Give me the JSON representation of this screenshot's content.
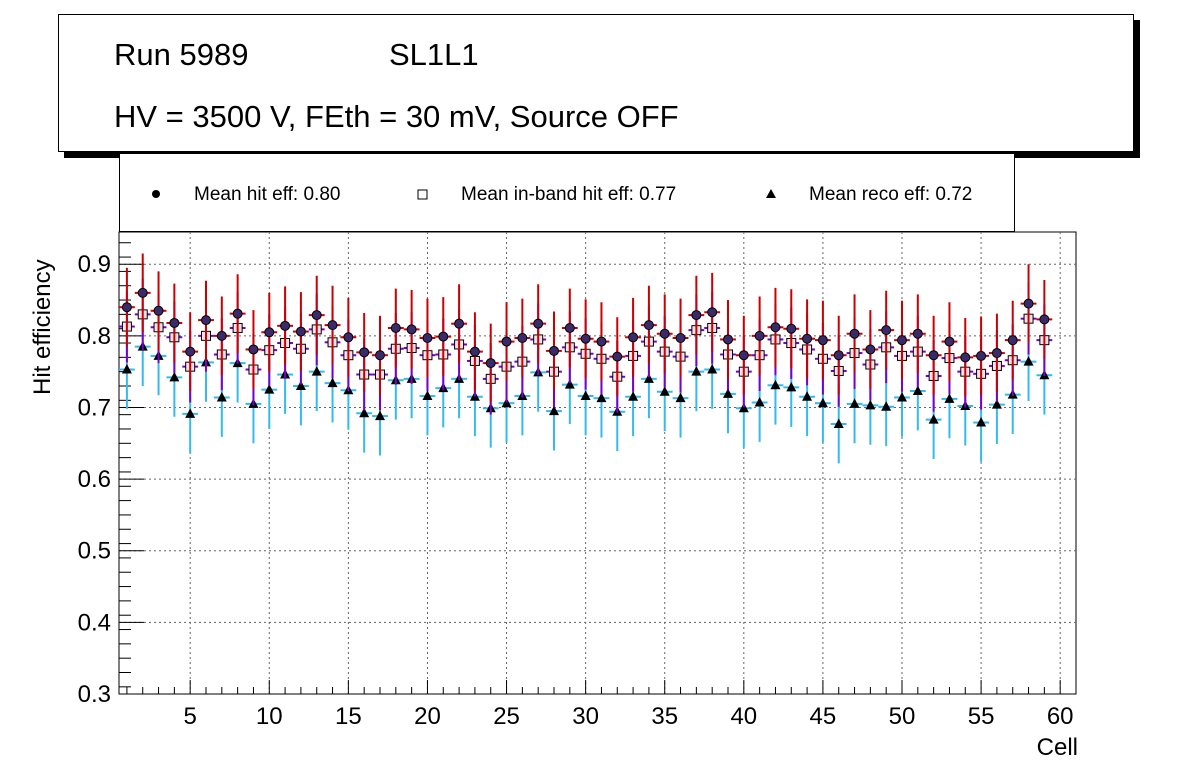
{
  "title": {
    "run": "Run 5989",
    "layer": "SL1L1",
    "conditions": "HV = 3500 V, FEth = 30 mV, Source OFF"
  },
  "legend": {
    "hit": "Mean hit  eff: 0.80",
    "inband": "Mean in-band hit eff: 0.77",
    "reco": "Mean reco eff: 0.72"
  },
  "colors": {
    "hit_err": "#cc0000",
    "hit_marker": "#3a2a6a",
    "inband_err": "#7a00cc",
    "inband_fill": "#fde0e8",
    "reco_err": "#33bbee",
    "reco_marker": "#000000"
  },
  "chart_data": {
    "type": "scatter",
    "xlabel": "Cell",
    "ylabel": "Hit efficiency",
    "xlim": [
      0.5,
      61
    ],
    "ylim": [
      0.3,
      0.945
    ],
    "xticks": [
      5,
      10,
      15,
      20,
      25,
      30,
      35,
      40,
      45,
      50,
      55,
      60
    ],
    "xtick_labels": [
      "5",
      "10",
      "15",
      "20",
      "25",
      "30",
      "35",
      "40",
      "45",
      "50",
      "55",
      "60"
    ],
    "yticks": [
      0.3,
      0.4,
      0.5,
      0.6,
      0.7,
      0.8,
      0.9
    ],
    "ytick_labels": [
      "0.3",
      "0.4",
      "0.5",
      "0.6",
      "0.7",
      "0.8",
      "0.9"
    ],
    "grid": true,
    "legend_position": "top",
    "x": [
      1,
      2,
      3,
      4,
      5,
      6,
      7,
      8,
      9,
      10,
      11,
      12,
      13,
      14,
      15,
      16,
      17,
      18,
      19,
      20,
      21,
      22,
      23,
      24,
      25,
      26,
      27,
      28,
      29,
      30,
      31,
      32,
      33,
      34,
      35,
      36,
      37,
      38,
      39,
      40,
      41,
      42,
      43,
      44,
      45,
      46,
      47,
      48,
      49,
      50,
      51,
      52,
      53,
      54,
      55,
      56,
      57,
      58,
      59
    ],
    "series": [
      {
        "name": "Mean hit  eff: 0.80",
        "values": [
          0.84,
          0.86,
          0.835,
          0.818,
          0.778,
          0.822,
          0.8,
          0.831,
          0.781,
          0.805,
          0.814,
          0.806,
          0.829,
          0.815,
          0.798,
          0.777,
          0.773,
          0.811,
          0.809,
          0.797,
          0.799,
          0.817,
          0.778,
          0.762,
          0.792,
          0.797,
          0.817,
          0.779,
          0.811,
          0.796,
          0.792,
          0.771,
          0.798,
          0.815,
          0.803,
          0.797,
          0.829,
          0.833,
          0.795,
          0.773,
          0.8,
          0.812,
          0.81,
          0.796,
          0.794,
          0.773,
          0.803,
          0.781,
          0.808,
          0.794,
          0.803,
          0.773,
          0.792,
          0.77,
          0.772,
          0.776,
          0.794,
          0.845,
          0.823
        ],
        "errors": [
          0.055,
          0.055,
          0.055,
          0.055,
          0.055,
          0.055,
          0.055,
          0.055,
          0.055,
          0.055,
          0.055,
          0.055,
          0.055,
          0.055,
          0.055,
          0.055,
          0.055,
          0.055,
          0.055,
          0.055,
          0.055,
          0.055,
          0.055,
          0.055,
          0.055,
          0.055,
          0.055,
          0.055,
          0.055,
          0.055,
          0.055,
          0.055,
          0.055,
          0.055,
          0.055,
          0.055,
          0.055,
          0.055,
          0.055,
          0.055,
          0.055,
          0.055,
          0.055,
          0.055,
          0.055,
          0.055,
          0.055,
          0.055,
          0.055,
          0.055,
          0.055,
          0.055,
          0.055,
          0.055,
          0.055,
          0.055,
          0.055,
          0.055,
          0.055
        ]
      },
      {
        "name": "Mean in-band hit eff: 0.77",
        "values": [
          0.813,
          0.83,
          0.812,
          0.798,
          0.757,
          0.8,
          0.774,
          0.811,
          0.753,
          0.78,
          0.79,
          0.782,
          0.809,
          0.791,
          0.773,
          0.746,
          0.746,
          0.782,
          0.783,
          0.773,
          0.774,
          0.788,
          0.765,
          0.74,
          0.757,
          0.764,
          0.795,
          0.75,
          0.784,
          0.775,
          0.768,
          0.743,
          0.772,
          0.792,
          0.778,
          0.771,
          0.808,
          0.811,
          0.774,
          0.75,
          0.773,
          0.795,
          0.79,
          0.781,
          0.768,
          0.751,
          0.776,
          0.76,
          0.784,
          0.772,
          0.778,
          0.744,
          0.769,
          0.75,
          0.747,
          0.758,
          0.766,
          0.824,
          0.794
        ],
        "errors": [
          0.05,
          0.05,
          0.05,
          0.05,
          0.05,
          0.05,
          0.05,
          0.05,
          0.05,
          0.05,
          0.05,
          0.05,
          0.05,
          0.05,
          0.05,
          0.05,
          0.05,
          0.05,
          0.05,
          0.05,
          0.05,
          0.05,
          0.05,
          0.05,
          0.05,
          0.05,
          0.05,
          0.05,
          0.05,
          0.05,
          0.05,
          0.05,
          0.05,
          0.05,
          0.05,
          0.05,
          0.05,
          0.05,
          0.05,
          0.05,
          0.05,
          0.05,
          0.05,
          0.05,
          0.05,
          0.05,
          0.05,
          0.05,
          0.05,
          0.05,
          0.05,
          0.05,
          0.05,
          0.05,
          0.05,
          0.05,
          0.05,
          0.05,
          0.05
        ]
      },
      {
        "name": "Mean reco eff: 0.72",
        "values": [
          0.753,
          0.785,
          0.772,
          0.742,
          0.691,
          0.763,
          0.714,
          0.762,
          0.705,
          0.725,
          0.746,
          0.73,
          0.75,
          0.734,
          0.724,
          0.692,
          0.688,
          0.738,
          0.74,
          0.716,
          0.727,
          0.74,
          0.715,
          0.699,
          0.706,
          0.716,
          0.749,
          0.695,
          0.732,
          0.716,
          0.713,
          0.694,
          0.715,
          0.74,
          0.722,
          0.713,
          0.75,
          0.753,
          0.719,
          0.699,
          0.707,
          0.731,
          0.728,
          0.715,
          0.706,
          0.677,
          0.705,
          0.703,
          0.701,
          0.714,
          0.723,
          0.683,
          0.712,
          0.702,
          0.679,
          0.704,
          0.718,
          0.764,
          0.745
        ],
        "errors": [
          0.055,
          0.055,
          0.055,
          0.055,
          0.055,
          0.055,
          0.055,
          0.055,
          0.055,
          0.055,
          0.055,
          0.055,
          0.055,
          0.055,
          0.055,
          0.055,
          0.055,
          0.055,
          0.055,
          0.055,
          0.055,
          0.055,
          0.055,
          0.055,
          0.055,
          0.055,
          0.055,
          0.055,
          0.055,
          0.055,
          0.055,
          0.055,
          0.055,
          0.055,
          0.055,
          0.055,
          0.055,
          0.055,
          0.055,
          0.055,
          0.055,
          0.055,
          0.055,
          0.055,
          0.055,
          0.055,
          0.055,
          0.055,
          0.055,
          0.055,
          0.055,
          0.055,
          0.055,
          0.055,
          0.055,
          0.055,
          0.055,
          0.055,
          0.055
        ]
      }
    ]
  }
}
